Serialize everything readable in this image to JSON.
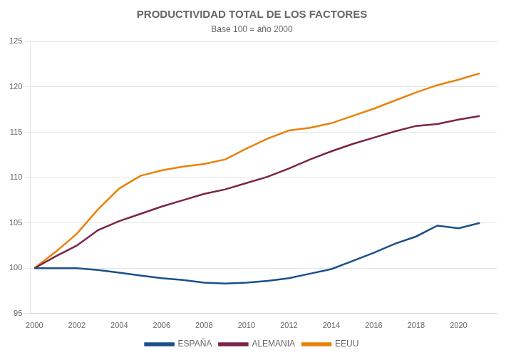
{
  "chart_data": {
    "type": "line",
    "title": "PRODUCTIVIDAD TOTAL DE LOS FACTORES",
    "subtitle": "Base 100 = año 2000",
    "x": [
      2000,
      2001,
      2002,
      2003,
      2004,
      2005,
      2006,
      2007,
      2008,
      2009,
      2010,
      2011,
      2012,
      2013,
      2014,
      2015,
      2016,
      2017,
      2018,
      2019,
      2020,
      2021
    ],
    "series": [
      {
        "name": "ESPAÑA",
        "color": "#1B4F8A",
        "values": [
          100.0,
          100.0,
          100.0,
          99.8,
          99.5,
          99.2,
          98.9,
          98.7,
          98.4,
          98.3,
          98.4,
          98.6,
          98.9,
          99.4,
          99.9,
          100.8,
          101.7,
          102.7,
          103.5,
          104.7,
          104.4,
          105.0
        ]
      },
      {
        "name": "ALEMANIA",
        "color": "#7B2448",
        "values": [
          100.0,
          101.3,
          102.5,
          104.2,
          105.2,
          106.0,
          106.8,
          107.5,
          108.2,
          108.7,
          109.4,
          110.1,
          111.0,
          112.0,
          112.9,
          113.7,
          114.4,
          115.1,
          115.7,
          115.9,
          116.4,
          116.8
        ]
      },
      {
        "name": "EEUU",
        "color": "#E8820A",
        "values": [
          100.0,
          101.8,
          103.8,
          106.5,
          108.8,
          110.2,
          110.8,
          111.2,
          111.5,
          112.0,
          113.2,
          114.3,
          115.2,
          115.5,
          116.0,
          116.8,
          117.6,
          118.5,
          119.4,
          120.2,
          120.8,
          121.5
        ]
      }
    ],
    "xlim": [
      1999.8,
      2021.8
    ],
    "xticks": [
      2000,
      2002,
      2004,
      2006,
      2008,
      2010,
      2012,
      2014,
      2016,
      2018,
      2020
    ],
    "ylim": [
      95,
      125
    ],
    "yticks": [
      95,
      100,
      105,
      110,
      115,
      120,
      125
    ],
    "grid": "y",
    "legend": "bottom"
  }
}
